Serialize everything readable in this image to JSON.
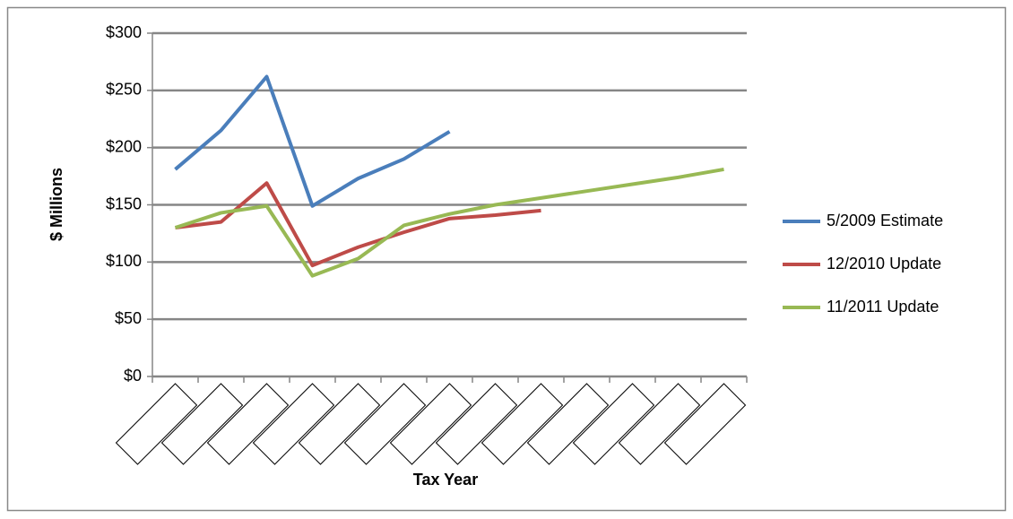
{
  "chart_data": {
    "type": "line",
    "y_label": "$ Millions",
    "x_label": "Tax Year",
    "categories": [
      null,
      null,
      null,
      null,
      null,
      null,
      null,
      null,
      null,
      null,
      null,
      null,
      null
    ],
    "series": [
      {
        "name": "5/2009 Estimate",
        "color": "#4a7ebb",
        "values": [
          181,
          215,
          262,
          149,
          173,
          190,
          214,
          null,
          null,
          null,
          null,
          null,
          null
        ]
      },
      {
        "name": "12/2010 Update",
        "color": "#be4b48",
        "values": [
          130,
          135,
          169,
          97,
          113,
          126,
          138,
          141,
          145,
          null,
          null,
          null,
          null
        ]
      },
      {
        "name": "11/2011 Update",
        "color": "#98b954",
        "values": [
          130,
          143,
          149,
          88,
          103,
          132,
          142,
          150,
          156,
          162,
          168,
          174,
          181
        ]
      }
    ],
    "ylim": [
      0,
      300
    ],
    "yticks": [
      {
        "value": 0,
        "label": "$0"
      },
      {
        "value": 50,
        "label": "$50"
      },
      {
        "value": 100,
        "label": "$100"
      },
      {
        "value": 150,
        "label": "$150"
      },
      {
        "value": 200,
        "label": "$200"
      },
      {
        "value": 250,
        "label": "$250"
      },
      {
        "value": 300,
        "label": "$300"
      }
    ],
    "grid": true,
    "legend": "right"
  }
}
